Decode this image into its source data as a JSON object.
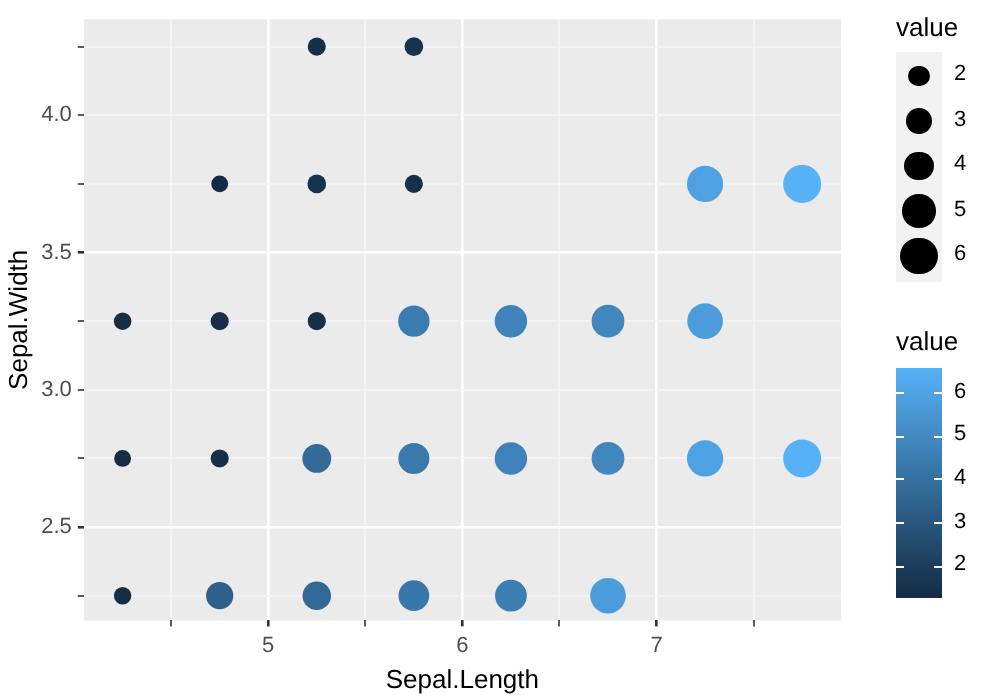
{
  "chart_data": {
    "type": "bubble",
    "xlabel": "Sepal.Length",
    "ylabel": "Sepal.Width",
    "legend_title": "value",
    "clabel": "value",
    "xlim": [
      4.05,
      7.95
    ],
    "xticks": [
      {
        "value": 4.5,
        "label": null
      },
      5,
      {
        "value": 5.5,
        "label": null
      },
      6,
      {
        "value": 6.5,
        "label": null
      },
      7,
      {
        "value": 7.5,
        "label": null
      }
    ],
    "ylim": [
      2.16,
      4.35
    ],
    "yticks": [
      {
        "value": 2.25,
        "label": null
      },
      2.5,
      {
        "value": 2.75,
        "label": null
      },
      {
        "value": 3,
        "label": "3.0"
      },
      {
        "value": 3.25,
        "label": null
      },
      3.5,
      {
        "value": 3.75,
        "label": null
      },
      {
        "value": 4,
        "label": "4.0"
      },
      {
        "value": 4.25,
        "label": null
      }
    ],
    "grid": true,
    "marker": "circle",
    "clim": [
      1.3,
      6.6
    ],
    "cticks": [
      2,
      3,
      4,
      5,
      6
    ],
    "size_legend": [
      2,
      3,
      4,
      5,
      6
    ],
    "series": [
      {
        "x": [
          5.25,
          5.75,
          4.75,
          5.25,
          5.75,
          7.25,
          7.75,
          4.25,
          4.75,
          5.25,
          5.75,
          6.25,
          6.75,
          7.25,
          4.25,
          4.75,
          5.25,
          5.75,
          6.25,
          6.75,
          7.25,
          7.75,
          4.25,
          4.75,
          5.25,
          5.75,
          6.25,
          6.75
        ],
        "values": [
          4.25,
          4.25,
          3.75,
          3.75,
          3.75,
          3.75,
          3.75,
          3.25,
          3.25,
          3.25,
          3.25,
          3.25,
          3.25,
          3.25,
          2.75,
          2.75,
          2.75,
          2.75,
          2.75,
          2.75,
          2.75,
          2.75,
          2.25,
          2.25,
          2.25,
          2.25,
          2.25,
          2.25
        ],
        "sizes": [
          1.5,
          1.6,
          1.3,
          1.6,
          1.5,
          6.0,
          6.6,
          1.4,
          1.5,
          1.5,
          4.5,
          4.8,
          4.9,
          5.8,
          1.3,
          1.5,
          3.8,
          4.4,
          4.8,
          4.9,
          6.0,
          6.6,
          1.4,
          3.4,
          3.7,
          4.3,
          4.6,
          5.8
        ],
        "cvalues": [
          1.5,
          1.6,
          1.3,
          1.6,
          1.5,
          6.0,
          6.6,
          1.4,
          1.5,
          1.5,
          4.5,
          4.8,
          4.9,
          5.8,
          1.3,
          1.5,
          3.8,
          4.4,
          4.8,
          4.9,
          6.0,
          6.6,
          1.4,
          3.4,
          3.7,
          4.3,
          4.6,
          5.8
        ]
      }
    ]
  }
}
